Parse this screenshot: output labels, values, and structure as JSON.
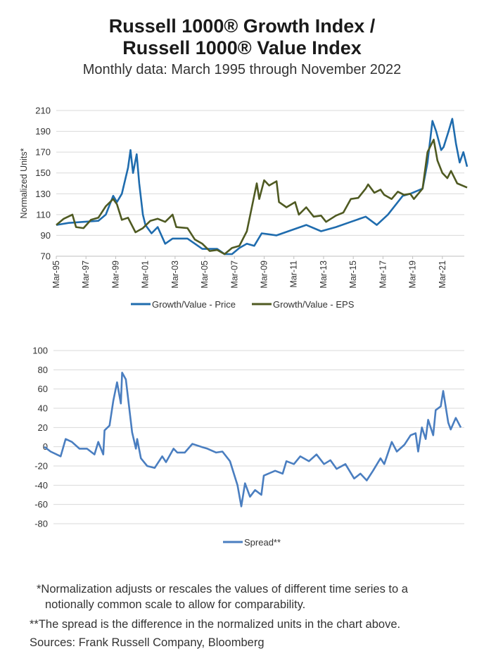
{
  "title_line1": "Russell 1000® Growth Index /",
  "title_line2": "Russell 1000® Value Index",
  "subtitle": "Monthly data: March 1995 through November 2022",
  "notes": [
    "*Normalization adjusts or rescales the values of different time series to a",
    "notionally common scale to allow for comparability.",
    "**The spread is the difference in the normalized units in the chart above.",
    "Sources: Frank Russell Company, Bloomberg"
  ],
  "chart_data": [
    {
      "type": "line",
      "ylabel": "Normalized Units*",
      "ylim": [
        70,
        210
      ],
      "yticks": [
        70,
        90,
        110,
        130,
        150,
        170,
        190,
        210
      ],
      "xlim": [
        "1995-03",
        "2022-11"
      ],
      "xticks": [
        "Mar-95",
        "Mar-97",
        "Mar-99",
        "Mar-01",
        "Mar-03",
        "Mar-05",
        "Mar-07",
        "Mar-09",
        "Mar-11",
        "Mar-13",
        "Mar-15",
        "Mar-17",
        "Mar-19",
        "Mar-21"
      ],
      "grid": "horizontal",
      "legend": "bottom",
      "series": [
        {
          "name": "Growth/Value - Price",
          "color": "#1f6cae",
          "points": [
            [
              "1995-03",
              100
            ],
            [
              "1996-01",
              102
            ],
            [
              "1997-01",
              103
            ],
            [
              "1998-01",
              104
            ],
            [
              "1998-07",
              110
            ],
            [
              "1999-01",
              128
            ],
            [
              "1999-04",
              122
            ],
            [
              "1999-08",
              130
            ],
            [
              "2000-01",
              155
            ],
            [
              "2000-03",
              172
            ],
            [
              "2000-05",
              150
            ],
            [
              "2000-08",
              168
            ],
            [
              "2000-10",
              140
            ],
            [
              "2001-01",
              110
            ],
            [
              "2001-03",
              100
            ],
            [
              "2001-08",
              92
            ],
            [
              "2002-01",
              98
            ],
            [
              "2002-07",
              82
            ],
            [
              "2003-01",
              87
            ],
            [
              "2004-01",
              87
            ],
            [
              "2005-01",
              77
            ],
            [
              "2006-01",
              77
            ],
            [
              "2006-07",
              72
            ],
            [
              "2007-01",
              72
            ],
            [
              "2007-07",
              78
            ],
            [
              "2008-01",
              82
            ],
            [
              "2008-07",
              80
            ],
            [
              "2009-01",
              92
            ],
            [
              "2010-01",
              90
            ],
            [
              "2011-01",
              95
            ],
            [
              "2012-01",
              100
            ],
            [
              "2013-01",
              94
            ],
            [
              "2014-01",
              98
            ],
            [
              "2015-01",
              103
            ],
            [
              "2016-01",
              108
            ],
            [
              "2016-10",
              100
            ],
            [
              "2017-07",
              110
            ],
            [
              "2018-07",
              128
            ],
            [
              "2019-01",
              130
            ],
            [
              "2019-11",
              135
            ],
            [
              "2020-03",
              160
            ],
            [
              "2020-07",
              200
            ],
            [
              "2020-10",
              190
            ],
            [
              "2021-02",
              172
            ],
            [
              "2021-04",
              175
            ],
            [
              "2021-08",
              190
            ],
            [
              "2021-11",
              202
            ],
            [
              "2022-02",
              178
            ],
            [
              "2022-05",
              160
            ],
            [
              "2022-08",
              170
            ],
            [
              "2022-11",
              156
            ]
          ]
        },
        {
          "name": "Growth/Value - EPS",
          "color": "#4f5a22",
          "points": [
            [
              "1995-03",
              100
            ],
            [
              "1995-09",
              106
            ],
            [
              "1996-04",
              110
            ],
            [
              "1996-07",
              98
            ],
            [
              "1997-01",
              97
            ],
            [
              "1997-07",
              105
            ],
            [
              "1998-01",
              107
            ],
            [
              "1998-07",
              118
            ],
            [
              "1999-01",
              125
            ],
            [
              "1999-04",
              120
            ],
            [
              "1999-08",
              105
            ],
            [
              "2000-01",
              107
            ],
            [
              "2000-07",
              93
            ],
            [
              "2001-01",
              97
            ],
            [
              "2001-07",
              104
            ],
            [
              "2002-01",
              106
            ],
            [
              "2002-07",
              103
            ],
            [
              "2003-01",
              110
            ],
            [
              "2003-04",
              98
            ],
            [
              "2004-01",
              97
            ],
            [
              "2004-07",
              86
            ],
            [
              "2005-01",
              82
            ],
            [
              "2005-07",
              75
            ],
            [
              "2006-01",
              76
            ],
            [
              "2006-07",
              72
            ],
            [
              "2007-01",
              78
            ],
            [
              "2007-07",
              80
            ],
            [
              "2008-01",
              94
            ],
            [
              "2008-09",
              140
            ],
            [
              "2008-11",
              125
            ],
            [
              "2009-03",
              143
            ],
            [
              "2009-07",
              138
            ],
            [
              "2010-01",
              142
            ],
            [
              "2010-03",
              122
            ],
            [
              "2010-09",
              117
            ],
            [
              "2011-04",
              122
            ],
            [
              "2011-07",
              110
            ],
            [
              "2012-01",
              117
            ],
            [
              "2012-07",
              108
            ],
            [
              "2013-01",
              109
            ],
            [
              "2013-05",
              103
            ],
            [
              "2014-01",
              109
            ],
            [
              "2014-07",
              112
            ],
            [
              "2015-01",
              125
            ],
            [
              "2015-07",
              126
            ],
            [
              "2016-01",
              135
            ],
            [
              "2016-03",
              139
            ],
            [
              "2016-08",
              131
            ],
            [
              "2017-01",
              134
            ],
            [
              "2017-04",
              129
            ],
            [
              "2017-10",
              125
            ],
            [
              "2018-03",
              132
            ],
            [
              "2018-08",
              129
            ],
            [
              "2019-01",
              130
            ],
            [
              "2019-04",
              125
            ],
            [
              "2019-11",
              135
            ],
            [
              "2020-03",
              170
            ],
            [
              "2020-08",
              182
            ],
            [
              "2020-11",
              162
            ],
            [
              "2021-03",
              150
            ],
            [
              "2021-07",
              145
            ],
            [
              "2021-10",
              152
            ],
            [
              "2022-03",
              140
            ],
            [
              "2022-11",
              136
            ]
          ]
        }
      ]
    },
    {
      "type": "line",
      "ylim": [
        -80,
        100
      ],
      "yticks": [
        -80,
        -60,
        -40,
        -20,
        0,
        20,
        40,
        60,
        80,
        100
      ],
      "xlim": [
        "1995-03",
        "2022-11"
      ],
      "grid": "horizontal",
      "legend": "bottom",
      "series": [
        {
          "name": "Spread**",
          "color": "#4a7ec0",
          "points": [
            [
              "1995-03",
              0
            ],
            [
              "1995-08",
              -5
            ],
            [
              "1996-04",
              -10
            ],
            [
              "1996-08",
              8
            ],
            [
              "1997-01",
              5
            ],
            [
              "1997-07",
              -2
            ],
            [
              "1998-01",
              -2
            ],
            [
              "1998-07",
              -8
            ],
            [
              "1998-10",
              5
            ],
            [
              "1999-02",
              -8
            ],
            [
              "1999-03",
              17
            ],
            [
              "1999-07",
              22
            ],
            [
              "1999-10",
              48
            ],
            [
              "2000-01",
              67
            ],
            [
              "2000-04",
              45
            ],
            [
              "2000-05",
              77
            ],
            [
              "2000-08",
              70
            ],
            [
              "2001-01",
              15
            ],
            [
              "2001-04",
              -2
            ],
            [
              "2001-05",
              8
            ],
            [
              "2001-08",
              -12
            ],
            [
              "2002-01",
              -20
            ],
            [
              "2002-07",
              -22
            ],
            [
              "2003-01",
              -10
            ],
            [
              "2003-04",
              -16
            ],
            [
              "2003-10",
              -2
            ],
            [
              "2004-01",
              -6
            ],
            [
              "2004-07",
              -6
            ],
            [
              "2005-01",
              3
            ],
            [
              "2005-08",
              0
            ],
            [
              "2006-01",
              -2
            ],
            [
              "2006-08",
              -6
            ],
            [
              "2007-01",
              -5
            ],
            [
              "2007-07",
              -15
            ],
            [
              "2008-01",
              -40
            ],
            [
              "2008-04",
              -62
            ],
            [
              "2008-07",
              -38
            ],
            [
              "2008-11",
              -52
            ],
            [
              "2009-03",
              -45
            ],
            [
              "2009-08",
              -50
            ],
            [
              "2009-10",
              -30
            ],
            [
              "2010-07",
              -25
            ],
            [
              "2011-01",
              -28
            ],
            [
              "2011-04",
              -15
            ],
            [
              "2011-10",
              -18
            ],
            [
              "2012-03",
              -10
            ],
            [
              "2012-10",
              -15
            ],
            [
              "2013-04",
              -8
            ],
            [
              "2013-10",
              -18
            ],
            [
              "2014-03",
              -14
            ],
            [
              "2014-08",
              -23
            ],
            [
              "2015-03",
              -18
            ],
            [
              "2015-10",
              -33
            ],
            [
              "2016-03",
              -28
            ],
            [
              "2016-08",
              -35
            ],
            [
              "2017-01",
              -25
            ],
            [
              "2017-07",
              -12
            ],
            [
              "2017-10",
              -18
            ],
            [
              "2018-04",
              5
            ],
            [
              "2018-08",
              -5
            ],
            [
              "2019-02",
              2
            ],
            [
              "2019-07",
              12
            ],
            [
              "2019-11",
              14
            ],
            [
              "2020-01",
              -5
            ],
            [
              "2020-04",
              20
            ],
            [
              "2020-07",
              8
            ],
            [
              "2020-09",
              28
            ],
            [
              "2021-01",
              12
            ],
            [
              "2021-03",
              38
            ],
            [
              "2021-07",
              42
            ],
            [
              "2021-09",
              58
            ],
            [
              "2022-01",
              25
            ],
            [
              "2022-03",
              18
            ],
            [
              "2022-07",
              30
            ],
            [
              "2022-11",
              20
            ]
          ]
        }
      ]
    }
  ]
}
